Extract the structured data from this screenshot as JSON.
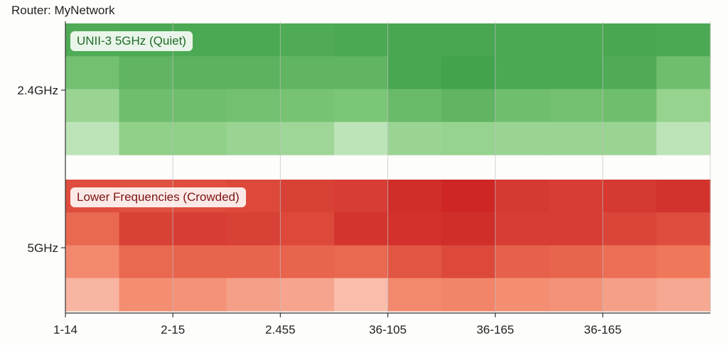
{
  "header": {
    "title": "Router: MyNetwork"
  },
  "chart_data": {
    "type": "heatmap",
    "title": "Router: MyNetwork",
    "xlabel": "",
    "ylabel": "",
    "x_tick_labels": [
      "1-14",
      "2-15",
      "2.455",
      "36-105",
      "36-165",
      "36-165"
    ],
    "y_tick_labels": [
      "2.4GHz",
      "5GHz"
    ],
    "grid": true,
    "bands": [
      {
        "label": "2.4GHz",
        "annotation": "UNII-3 5GHz (Quiet)",
        "colormap": "greens",
        "rows": [
          [
            0.78,
            0.8,
            0.8,
            0.8,
            0.78,
            0.8,
            0.82,
            0.82,
            0.8,
            0.8,
            0.82,
            0.8
          ],
          [
            0.6,
            0.7,
            0.72,
            0.72,
            0.7,
            0.7,
            0.82,
            0.85,
            0.8,
            0.8,
            0.78,
            0.62
          ],
          [
            0.4,
            0.62,
            0.62,
            0.6,
            0.58,
            0.55,
            0.65,
            0.7,
            0.62,
            0.6,
            0.62,
            0.42
          ],
          [
            0.22,
            0.45,
            0.45,
            0.4,
            0.38,
            0.22,
            0.4,
            0.42,
            0.4,
            0.4,
            0.4,
            0.22
          ]
        ]
      },
      {
        "label": "5GHz",
        "annotation": "Lower Frequencies (Crowded)",
        "colormap": "reds",
        "rows": [
          [
            0.72,
            0.7,
            0.72,
            0.74,
            0.78,
            0.8,
            0.88,
            0.92,
            0.82,
            0.8,
            0.82,
            0.85
          ],
          [
            0.58,
            0.78,
            0.8,
            0.78,
            0.74,
            0.84,
            0.86,
            0.88,
            0.8,
            0.8,
            0.76,
            0.72
          ],
          [
            0.42,
            0.58,
            0.6,
            0.6,
            0.6,
            0.58,
            0.68,
            0.74,
            0.62,
            0.6,
            0.55,
            0.5
          ],
          [
            0.22,
            0.4,
            0.38,
            0.32,
            0.3,
            0.18,
            0.42,
            0.44,
            0.4,
            0.38,
            0.32,
            0.28
          ]
        ]
      }
    ],
    "value_range": [
      0,
      1
    ]
  }
}
